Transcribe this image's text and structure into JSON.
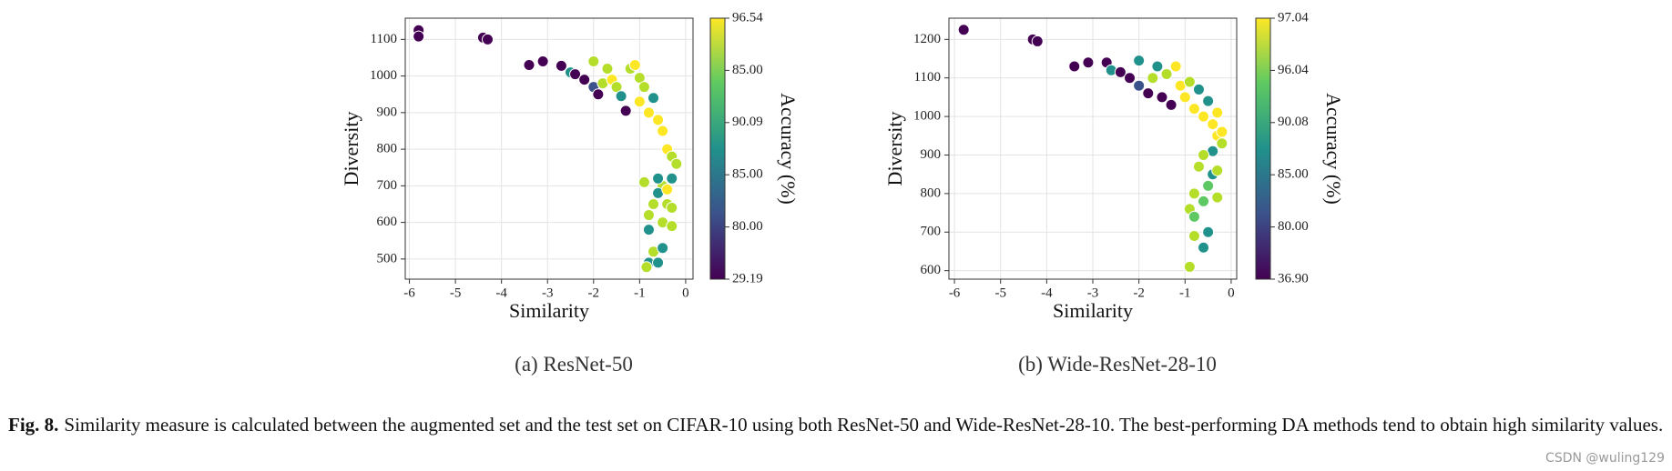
{
  "chart_data": [
    {
      "type": "scatter",
      "subtitle": "(a) ResNet-50",
      "x_label": "Similarity",
      "y_label": "Diversity",
      "xlim": [
        -6.09,
        0.16
      ],
      "xticks": [
        -6,
        -5,
        -4,
        -3,
        -2,
        -1,
        0
      ],
      "ylim": [
        445,
        1158
      ],
      "yticks": [
        500,
        600,
        700,
        800,
        900,
        1000,
        1100
      ],
      "grid": true,
      "colorbar": {
        "label": "Accuracy (%)",
        "ticks": [
          96.54,
          {
            "value": 85,
            "label": "85.00"
          },
          90.09,
          {
            "value": 85,
            "label": "85.00"
          },
          {
            "value": 80,
            "label": "80.00"
          },
          29.19
        ]
      },
      "x": [
        -5.8,
        -5.8,
        -4.4,
        -4.3,
        -3.4,
        -3.1,
        -2.7,
        -2.5,
        -2.4,
        -2.2,
        -2.0,
        -2.0,
        -1.9,
        -1.8,
        -1.7,
        -1.6,
        -1.5,
        -1.4,
        -1.3,
        -1.2,
        -1.1,
        -1.0,
        -0.9,
        -1.0,
        -0.8,
        -0.7,
        -0.6,
        -0.5,
        -0.4,
        -0.3,
        -0.2,
        -0.3,
        -0.5,
        -0.6,
        -0.4,
        -0.7,
        -0.8,
        -0.5,
        -0.3,
        -0.8,
        -0.7,
        -0.5,
        -0.8,
        -0.6,
        -0.85,
        -0.4,
        -0.3,
        -0.6,
        -0.9
      ],
      "y": [
        1125,
        1108,
        1105,
        1100,
        1030,
        1040,
        1028,
        1010,
        1005,
        990,
        1040,
        970,
        950,
        980,
        1020,
        990,
        970,
        945,
        905,
        1020,
        1030,
        995,
        970,
        930,
        900,
        940,
        880,
        850,
        800,
        780,
        760,
        720,
        700,
        680,
        650,
        650,
        620,
        600,
        590,
        580,
        520,
        530,
        490,
        490,
        478,
        690,
        640,
        720,
        710
      ],
      "colors": [
        "#440154",
        "#440154",
        "#440154",
        "#440154",
        "#440154",
        "#440154",
        "#440154",
        "#21918c",
        "#440154",
        "#440154",
        "#b5de2b",
        "#3b528b",
        "#440154",
        "#b5de2b",
        "#b5de2b",
        "#fde725",
        "#b5de2b",
        "#21918c",
        "#440154",
        "#b5de2b",
        "#fde725",
        "#b5de2b",
        "#b5de2b",
        "#fde725",
        "#fde725",
        "#21918c",
        "#fde725",
        "#fde725",
        "#fde725",
        "#b5de2b",
        "#b5de2b",
        "#21918c",
        "#b5de2b",
        "#21918c",
        "#b5de2b",
        "#b5de2b",
        "#b5de2b",
        "#b5de2b",
        "#b5de2b",
        "#21918c",
        "#b5de2b",
        "#21918c",
        "#21918c",
        "#21918c",
        "#b5de2b",
        "#fde725",
        "#b5de2b",
        "#21918c",
        "#b5de2b"
      ]
    },
    {
      "type": "scatter",
      "subtitle": "(b) Wide-ResNet-28-10",
      "x_label": "Similarity",
      "y_label": "Diversity",
      "xlim": [
        -6.12,
        0.12
      ],
      "xticks": [
        -6,
        -5,
        -4,
        -3,
        -2,
        -1,
        0
      ],
      "ylim": [
        578,
        1255
      ],
      "yticks": [
        600,
        700,
        800,
        900,
        1000,
        1100,
        1200
      ],
      "grid": true,
      "colorbar": {
        "label": "Accuracy (%)",
        "ticks": [
          97.04,
          96.04,
          90.08,
          {
            "value": 85,
            "label": "85.00"
          },
          {
            "value": 80,
            "label": "80.00"
          },
          {
            "value": 36.9,
            "label": "36.90"
          }
        ]
      },
      "x": [
        -5.8,
        -4.3,
        -4.2,
        -3.4,
        -3.1,
        -2.7,
        -2.6,
        -2.4,
        -2.2,
        -2.0,
        -2.0,
        -1.8,
        -1.7,
        -1.6,
        -1.5,
        -1.4,
        -1.3,
        -1.2,
        -1.1,
        -1.0,
        -0.9,
        -0.8,
        -0.7,
        -0.6,
        -0.5,
        -0.4,
        -0.3,
        -0.2,
        -0.4,
        -0.6,
        -0.7,
        -0.4,
        -0.5,
        -0.3,
        -0.6,
        -0.3,
        -0.8,
        -0.9,
        -0.8,
        -0.5,
        -0.8,
        -0.6,
        -0.9,
        -0.2,
        -0.3
      ],
      "y": [
        1225,
        1200,
        1195,
        1130,
        1140,
        1140,
        1120,
        1115,
        1100,
        1145,
        1080,
        1060,
        1100,
        1130,
        1050,
        1110,
        1030,
        1130,
        1080,
        1050,
        1090,
        1020,
        1070,
        1000,
        1040,
        980,
        950,
        930,
        910,
        900,
        870,
        850,
        820,
        860,
        780,
        790,
        800,
        760,
        740,
        700,
        690,
        660,
        610,
        960,
        1010
      ],
      "colors": [
        "#440154",
        "#440154",
        "#440154",
        "#440154",
        "#440154",
        "#440154",
        "#21918c",
        "#440154",
        "#440154",
        "#21918c",
        "#3b528b",
        "#440154",
        "#b5de2b",
        "#21918c",
        "#440154",
        "#b5de2b",
        "#440154",
        "#fde725",
        "#fde725",
        "#fde725",
        "#b5de2b",
        "#fde725",
        "#21918c",
        "#fde725",
        "#21918c",
        "#fde725",
        "#fde725",
        "#b5de2b",
        "#21918c",
        "#b5de2b",
        "#b5de2b",
        "#21918c",
        "#5ec962",
        "#b5de2b",
        "#5ec962",
        "#b5de2b",
        "#b5de2b",
        "#b5de2b",
        "#5ec962",
        "#21918c",
        "#b5de2b",
        "#21918c",
        "#b5de2b",
        "#fde725",
        "#fde725"
      ]
    }
  ],
  "caption": {
    "label": "Fig. 8.",
    "text": "Similarity measure is calculated between the augmented set and the test set on CIFAR-10 using both ResNet-50 and Wide-ResNet-28-10. The best-performing DA methods tend to obtain high similarity values."
  },
  "watermark": "CSDN @wuling129"
}
